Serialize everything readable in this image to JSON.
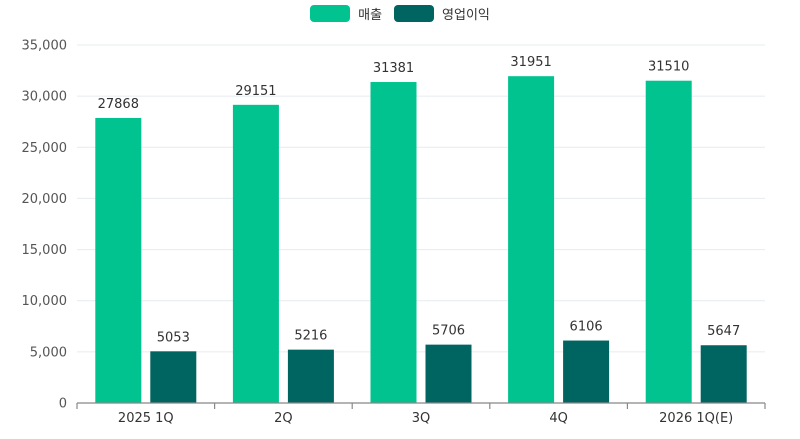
{
  "chart_data": {
    "type": "bar",
    "title": "",
    "xlabel": "",
    "ylabel": "",
    "categories": [
      "2025 1Q",
      "2Q",
      "3Q",
      "4Q",
      "2026 1Q(E)"
    ],
    "series": [
      {
        "name": "매출",
        "color": "#00c38f",
        "values": [
          27868,
          29151,
          31381,
          31951,
          31510
        ]
      },
      {
        "name": "영업이익",
        "color": "#006560",
        "values": [
          5053,
          5216,
          5706,
          6106,
          5647
        ]
      }
    ],
    "ylim": [
      0,
      35000
    ],
    "yticks": [
      0,
      5000,
      10000,
      15000,
      20000,
      25000,
      30000,
      35000
    ],
    "ytick_labels": [
      "0",
      "5,000",
      "10,000",
      "15,000",
      "20,000",
      "25,000",
      "30,000",
      "35,000"
    ],
    "grid": true,
    "legend_position": "top-center",
    "data_labels": true
  },
  "legend": {
    "items": [
      {
        "label": "매출",
        "color": "#00c38f"
      },
      {
        "label": "영업이익",
        "color": "#006560"
      }
    ]
  }
}
